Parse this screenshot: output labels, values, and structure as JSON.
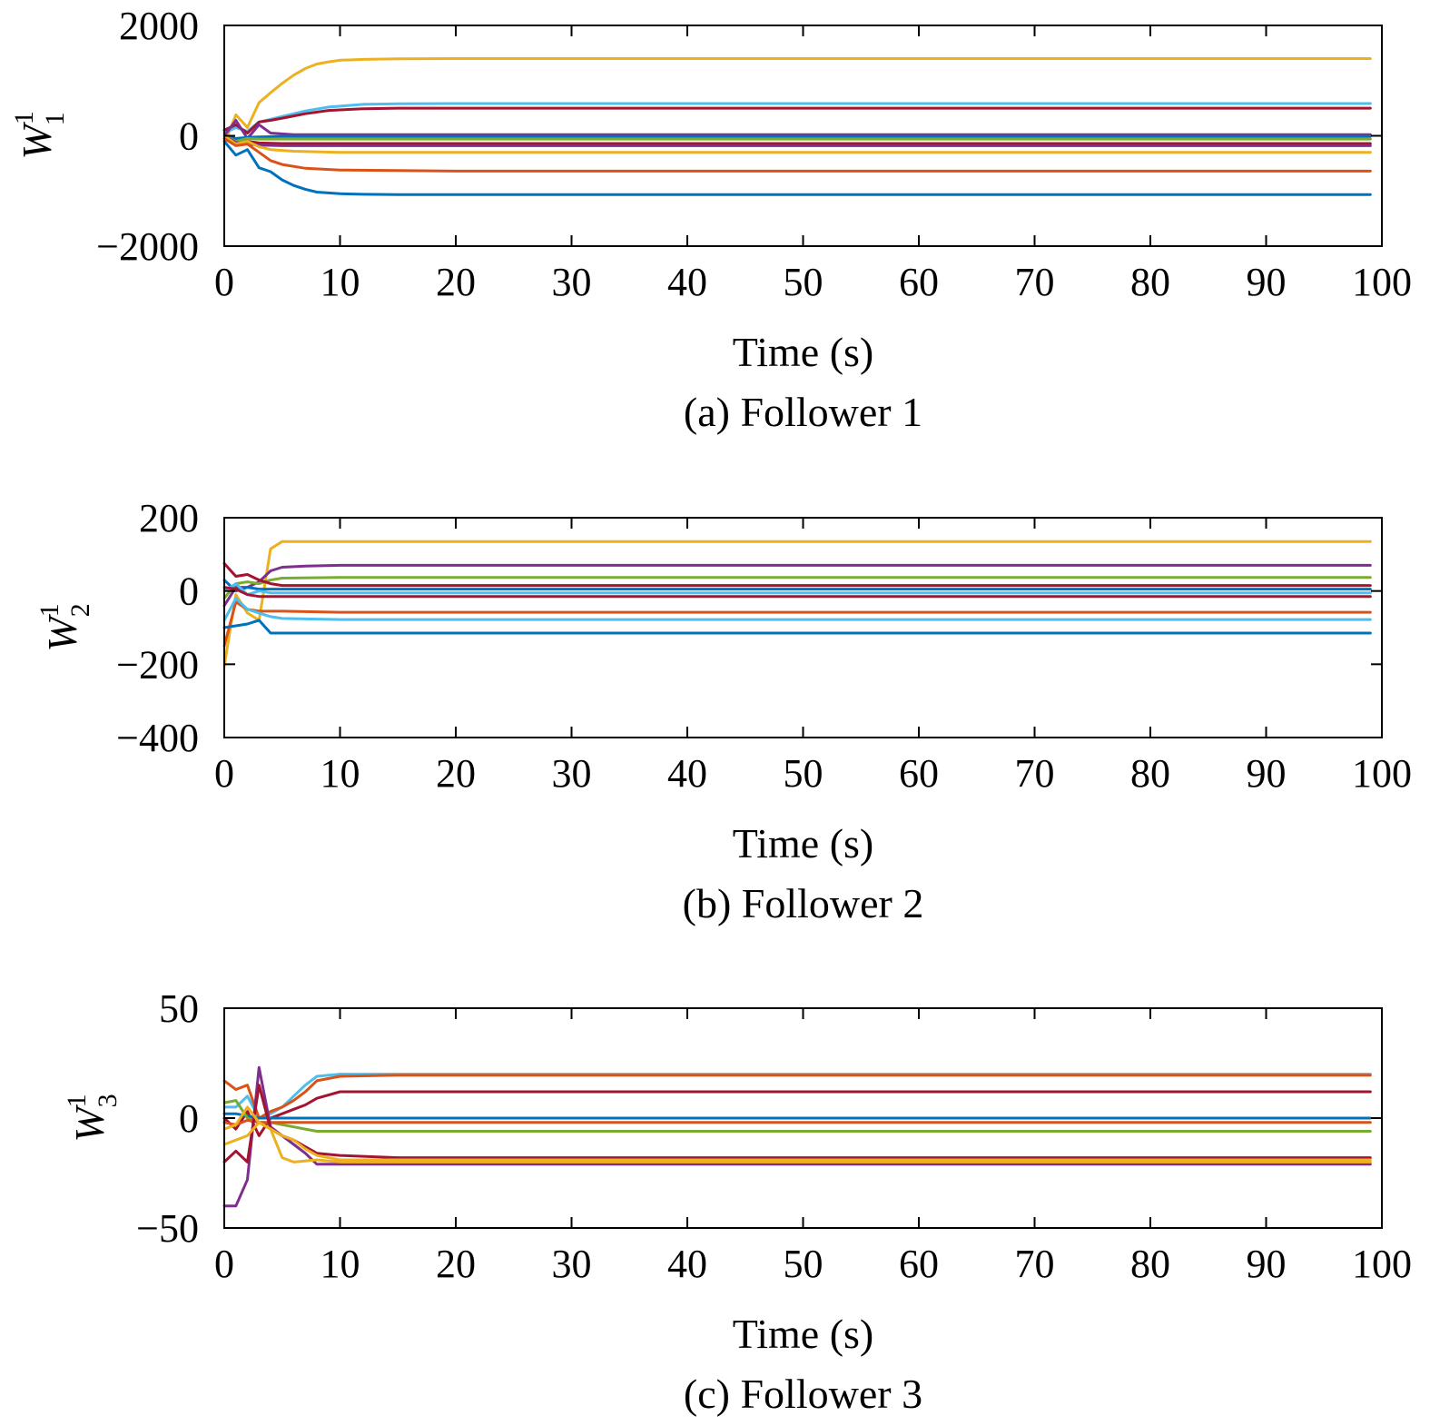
{
  "chart_data": [
    {
      "type": "line",
      "caption": "(a) Follower 1",
      "xlabel": "Time (s)",
      "ylabel": {
        "symbol": "W",
        "superscript": "1",
        "subscript": "1"
      },
      "xlim": [
        0,
        100
      ],
      "ylim": [
        -2000,
        2000
      ],
      "xticks": [
        "0",
        "10",
        "20",
        "30",
        "40",
        "50",
        "60",
        "70",
        "80",
        "90",
        "100"
      ],
      "yticks": [
        "−2000",
        "0",
        "2000"
      ],
      "ytick_values": [
        -2000,
        0,
        2000
      ],
      "series": [
        {
          "color": "#EDB120",
          "x": [
            0,
            1,
            2,
            3,
            4,
            5,
            6,
            7,
            8,
            9,
            10,
            12,
            15,
            20,
            99
          ],
          "y": [
            -150,
            380,
            150,
            600,
            780,
            950,
            1100,
            1220,
            1300,
            1340,
            1370,
            1385,
            1395,
            1400,
            1400
          ]
        },
        {
          "color": "#4DBEEE",
          "x": [
            0,
            1,
            2,
            3,
            4,
            5,
            7,
            9,
            12,
            15,
            20,
            99
          ],
          "y": [
            50,
            150,
            80,
            250,
            300,
            350,
            450,
            520,
            570,
            580,
            585,
            585
          ]
        },
        {
          "color": "#A2142F",
          "x": [
            0,
            1,
            2,
            3,
            4,
            5,
            7,
            9,
            12,
            15,
            20,
            99
          ],
          "y": [
            100,
            200,
            50,
            250,
            280,
            320,
            400,
            460,
            490,
            500,
            500,
            500
          ]
        },
        {
          "color": "#7E2F8E",
          "x": [
            0,
            1,
            2,
            3,
            4,
            6,
            10,
            99
          ],
          "y": [
            0,
            280,
            -50,
            200,
            50,
            20,
            20,
            20
          ]
        },
        {
          "color": "#0072BD",
          "x": [
            0,
            1,
            2,
            3,
            5,
            10,
            99
          ],
          "y": [
            0,
            -50,
            -30,
            -20,
            -10,
            -10,
            -10
          ]
        },
        {
          "color": "#77AC30",
          "x": [
            0,
            1,
            2,
            3,
            5,
            10,
            99
          ],
          "y": [
            0,
            -100,
            -50,
            -60,
            -60,
            -60,
            -60
          ]
        },
        {
          "color": "#A2142F",
          "x": [
            0,
            1,
            2,
            3,
            5,
            10,
            99
          ],
          "y": [
            0,
            -150,
            -100,
            -130,
            -140,
            -140,
            -140
          ]
        },
        {
          "color": "#7E2F8E",
          "x": [
            0,
            1,
            2,
            3,
            5,
            10,
            99
          ],
          "y": [
            0,
            -120,
            -150,
            -170,
            -180,
            -180,
            -180
          ]
        },
        {
          "color": "#EDB120",
          "x": [
            0,
            1,
            2,
            3,
            4,
            6,
            10,
            15,
            99
          ],
          "y": [
            0,
            -150,
            -100,
            -200,
            -250,
            -280,
            -300,
            -300,
            -300
          ]
        },
        {
          "color": "#D95319",
          "x": [
            0,
            1,
            2,
            3,
            4,
            5,
            7,
            10,
            15,
            20,
            99
          ],
          "y": [
            -50,
            -180,
            -150,
            -300,
            -450,
            -520,
            -590,
            -620,
            -630,
            -640,
            -640
          ]
        },
        {
          "color": "#0072BD",
          "x": [
            0,
            1,
            2,
            3,
            4,
            5,
            6,
            7,
            8,
            10,
            12,
            15,
            20,
            99
          ],
          "y": [
            -100,
            -350,
            -250,
            -580,
            -650,
            -800,
            -900,
            -970,
            -1020,
            -1050,
            -1060,
            -1065,
            -1065,
            -1065
          ]
        }
      ]
    },
    {
      "type": "line",
      "caption": "(b) Follower 2",
      "xlabel": "Time (s)",
      "ylabel": {
        "symbol": "W",
        "superscript": "1",
        "subscript": "2"
      },
      "xlim": [
        0,
        100
      ],
      "ylim": [
        -400,
        200
      ],
      "xticks": [
        "0",
        "10",
        "20",
        "30",
        "40",
        "50",
        "60",
        "70",
        "80",
        "90",
        "100"
      ],
      "yticks": [
        "−400",
        "−200",
        "0",
        "200"
      ],
      "ytick_values": [
        -400,
        -200,
        0,
        200
      ],
      "series": [
        {
          "color": "#EDB120",
          "x": [
            0,
            1,
            2,
            3,
            4,
            5,
            6,
            10,
            99
          ],
          "y": [
            -205,
            -10,
            -60,
            -80,
            115,
            135,
            135,
            135,
            135
          ]
        },
        {
          "color": "#7E2F8E",
          "x": [
            0,
            1,
            2,
            3,
            4,
            5,
            7,
            10,
            99
          ],
          "y": [
            -40,
            10,
            10,
            25,
            55,
            65,
            68,
            70,
            70
          ]
        },
        {
          "color": "#77AC30",
          "x": [
            0,
            1,
            2,
            3,
            4,
            5,
            10,
            99
          ],
          "y": [
            -20,
            20,
            25,
            20,
            30,
            35,
            37,
            37
          ]
        },
        {
          "color": "#A2142F",
          "x": [
            0,
            1,
            2,
            3,
            4,
            5,
            10,
            99
          ],
          "y": [
            75,
            40,
            45,
            30,
            20,
            15,
            15,
            15
          ]
        },
        {
          "color": "#0072BD",
          "x": [
            0,
            1,
            2,
            3,
            4,
            5,
            10,
            99
          ],
          "y": [
            30,
            0,
            10,
            5,
            5,
            5,
            5,
            5
          ]
        },
        {
          "color": "#4DBEEE",
          "x": [
            0,
            1,
            2,
            3,
            4,
            5,
            10,
            99
          ],
          "y": [
            0,
            20,
            -10,
            0,
            -5,
            -5,
            -5,
            -5
          ]
        },
        {
          "color": "#A2142F",
          "x": [
            0,
            1,
            2,
            3,
            4,
            5,
            10,
            99
          ],
          "y": [
            10,
            5,
            -10,
            -15,
            -15,
            -15,
            -15,
            -15
          ]
        },
        {
          "color": "#D95319",
          "x": [
            0,
            1,
            2,
            3,
            4,
            5,
            10,
            99
          ],
          "y": [
            -150,
            -30,
            -50,
            -55,
            -55,
            -55,
            -58,
            -58
          ]
        },
        {
          "color": "#4DBEEE",
          "x": [
            0,
            1,
            2,
            3,
            4,
            5,
            10,
            99
          ],
          "y": [
            -80,
            -20,
            -50,
            -60,
            -70,
            -75,
            -78,
            -78
          ]
        },
        {
          "color": "#0072BD",
          "x": [
            0,
            1,
            2,
            3,
            4,
            5,
            10,
            99
          ],
          "y": [
            -100,
            -95,
            -90,
            -80,
            -115,
            -115,
            -115,
            -115
          ]
        }
      ]
    },
    {
      "type": "line",
      "caption": "(c) Follower 3",
      "xlabel": "Time (s)",
      "ylabel": {
        "symbol": "W",
        "superscript": "1",
        "subscript": "3"
      },
      "xlim": [
        0,
        100
      ],
      "ylim": [
        -50,
        50
      ],
      "xticks": [
        "0",
        "10",
        "20",
        "30",
        "40",
        "50",
        "60",
        "70",
        "80",
        "90",
        "100"
      ],
      "yticks": [
        "−50",
        "0",
        "50"
      ],
      "ytick_values": [
        -50,
        0,
        50
      ],
      "series": [
        {
          "color": "#4DBEEE",
          "x": [
            0,
            1,
            2,
            3,
            4,
            5,
            6,
            7,
            8,
            10,
            15,
            99
          ],
          "y": [
            5,
            5,
            10,
            0,
            2,
            5,
            10,
            15,
            19,
            20,
            20,
            20
          ]
        },
        {
          "color": "#D95319",
          "x": [
            0,
            1,
            2,
            3,
            4,
            5,
            6,
            7,
            8,
            10,
            15,
            99
          ],
          "y": [
            17,
            13,
            15,
            0,
            3,
            5,
            8,
            12,
            17,
            19,
            19.5,
            19.5
          ]
        },
        {
          "color": "#A2142F",
          "x": [
            0,
            1,
            2,
            3,
            4,
            5,
            6,
            7,
            8,
            10,
            15,
            99
          ],
          "y": [
            0,
            -5,
            3,
            -8,
            0,
            2,
            4,
            6,
            9,
            12,
            12,
            12
          ]
        },
        {
          "color": "#0072BD",
          "x": [
            0,
            1,
            2,
            3,
            4,
            5,
            10,
            99
          ],
          "y": [
            2,
            2,
            1,
            0,
            0,
            0,
            0,
            0
          ]
        },
        {
          "color": "#77AC30",
          "x": [
            0,
            1,
            2,
            3,
            4,
            5,
            6,
            7,
            8,
            10,
            99
          ],
          "y": [
            7,
            8,
            0,
            -2,
            -2,
            -3,
            -4,
            -5,
            -6,
            -6,
            -6
          ]
        },
        {
          "color": "#D95319",
          "x": [
            0,
            1,
            2,
            3,
            4,
            6,
            10,
            99
          ],
          "y": [
            -2,
            -3,
            -1,
            -2,
            -2,
            -2,
            -2,
            -2
          ]
        },
        {
          "color": "#7E2F8E",
          "x": [
            0,
            1,
            2,
            3,
            4,
            5,
            6,
            7,
            8,
            9,
            10,
            99
          ],
          "y": [
            -40,
            -40,
            -28,
            23,
            -4,
            -8,
            -12,
            -16,
            -21,
            -21,
            -21,
            -21
          ]
        },
        {
          "color": "#A2142F",
          "x": [
            0,
            1,
            2,
            3,
            4,
            5,
            6,
            7,
            8,
            10,
            15,
            99
          ],
          "y": [
            -20,
            -15,
            -20,
            15,
            -5,
            -8,
            -10,
            -13,
            -16,
            -17,
            -18,
            -18
          ]
        },
        {
          "color": "#EDB120",
          "x": [
            0,
            1,
            2,
            3,
            4,
            5,
            6,
            8,
            10,
            15,
            99
          ],
          "y": [
            -12,
            -10,
            -8,
            -2,
            -5,
            -18,
            -20,
            -19,
            -20,
            -20,
            -20
          ]
        },
        {
          "color": "#EDB120",
          "x": [
            0,
            1,
            2,
            3,
            4,
            5,
            6,
            7,
            8,
            10,
            15,
            99
          ],
          "y": [
            -5,
            -3,
            5,
            -2,
            -5,
            -8,
            -10,
            -14,
            -17,
            -19,
            -19,
            -19
          ]
        }
      ]
    }
  ]
}
